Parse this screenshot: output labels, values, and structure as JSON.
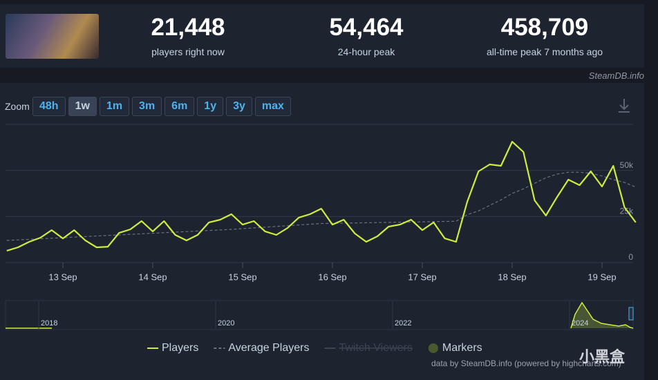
{
  "brand": "SteamDB.info",
  "stats": [
    {
      "value": "21,448",
      "label": "players right now"
    },
    {
      "value": "54,464",
      "label": "24-hour peak"
    },
    {
      "value": "458,709",
      "label": "all-time peak 7 months ago"
    }
  ],
  "zoom": {
    "label": "Zoom",
    "options": [
      "48h",
      "1w",
      "1m",
      "3m",
      "6m",
      "1y",
      "3y",
      "max"
    ],
    "active": "1w"
  },
  "navigator": {
    "labels": [
      "2018",
      "2020",
      "2022",
      "2024"
    ]
  },
  "legend_extra": [
    {
      "name": "Twitch Viewers",
      "color": "#3b4251",
      "hidden": true
    },
    {
      "name": "Markers",
      "color": "#4b5a2e"
    }
  ],
  "credit": "data by SteamDB.info (powered by highcharts.com)",
  "watermark": "小黑盒",
  "chart_data": {
    "type": "line",
    "categories": [
      null,
      null,
      null,
      null,
      null,
      "13 Sep",
      null,
      null,
      null,
      null,
      null,
      null,
      null,
      "14 Sep",
      null,
      null,
      null,
      null,
      null,
      null,
      null,
      "15 Sep",
      null,
      null,
      null,
      null,
      null,
      null,
      null,
      "16 Sep",
      null,
      null,
      null,
      null,
      null,
      null,
      null,
      "17 Sep",
      null,
      null,
      null,
      null,
      null,
      null,
      null,
      "18 Sep",
      null,
      null,
      null,
      null,
      null,
      null,
      null,
      "19 Sep",
      null,
      null,
      null
    ],
    "series": [
      {
        "name": "Players",
        "color": "#cdef3c",
        "values": [
          6400,
          8250,
          11250,
          13500,
          17600,
          13100,
          17600,
          12000,
          8250,
          8600,
          16100,
          18000,
          22500,
          16900,
          22500,
          15000,
          12000,
          15000,
          21800,
          23250,
          26250,
          20600,
          22500,
          16900,
          15000,
          18750,
          24400,
          26250,
          29250,
          20600,
          23250,
          15750,
          11250,
          14250,
          19500,
          20600,
          23250,
          17600,
          21800,
          13100,
          11250,
          33000,
          49500,
          53250,
          52500,
          65600,
          60000,
          33750,
          25500,
          35600,
          45000,
          42000,
          49500,
          41250,
          52500,
          30000,
          21800
        ]
      },
      {
        "name": "Average Players",
        "color": "#6b7280",
        "dashed": true,
        "values": [
          12000,
          12300,
          12600,
          12900,
          13200,
          13500,
          13800,
          14100,
          14400,
          14700,
          15000,
          15300,
          15600,
          15900,
          16200,
          16500,
          16800,
          17100,
          17400,
          17700,
          18000,
          18400,
          18800,
          19200,
          19600,
          20000,
          20400,
          20800,
          21200,
          21300,
          21400,
          21500,
          21600,
          21700,
          21800,
          21900,
          22000,
          22100,
          22200,
          22300,
          22400,
          26000,
          28000,
          31000,
          34000,
          37500,
          40000,
          43000,
          46000,
          48000,
          49000,
          49000,
          48500,
          47000,
          45000,
          43500,
          41000
        ]
      }
    ],
    "ylim": [
      0,
      75000
    ],
    "yticks": [
      0,
      {
        "value": 25000,
        "label": "25k"
      },
      {
        "value": 50000,
        "label": "50k"
      }
    ],
    "grid": true
  }
}
